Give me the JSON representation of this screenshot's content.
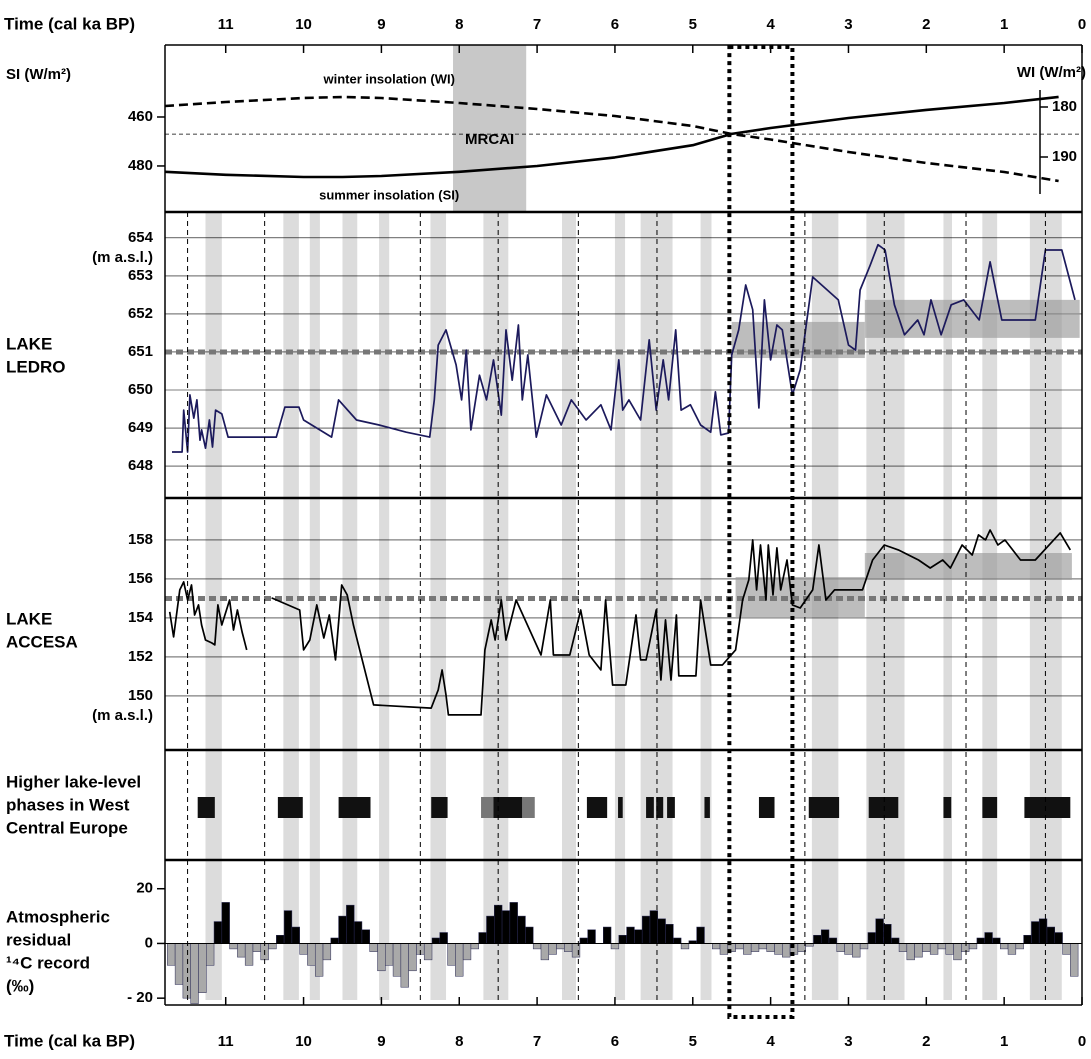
{
  "chart_data": [
    {
      "type": "line",
      "xlabel": "Time (cal ka BP)",
      "xlim": [
        11.78,
        0
      ],
      "xticks": [
        11,
        10,
        9,
        8,
        7,
        6,
        5,
        4,
        3,
        2,
        1,
        0
      ],
      "ylabel": "SI (W/m²)",
      "ylim": [
        498.8,
        430.6
      ],
      "yticks": [
        460,
        480
      ],
      "y2label": "WI (W/m²)",
      "y2lim": [
        201,
        167.6
      ],
      "y2ticks": [
        180,
        190
      ],
      "reference_level": 467,
      "highlight": {
        "label": "MRCAI",
        "range": [
          8.08,
          7.14
        ],
        "color": "#c8c8c8"
      },
      "x": [
        11.78,
        11,
        10,
        9.5,
        9,
        8,
        7,
        6,
        5,
        4.5,
        4,
        3,
        2,
        1,
        0.3
      ],
      "series": [
        {
          "name": "summer insolation (SI)",
          "color": "#000000",
          "dash": false,
          "values": [
            482.4,
            483.6,
            484.5,
            484.5,
            484.1,
            482.4,
            480,
            476.5,
            471.5,
            466.9,
            464.5,
            460.4,
            457.1,
            454.3,
            451.8
          ]
        },
        {
          "name": "winter insolation (WI)",
          "color": "#000000",
          "dash": true,
          "axis": "y2",
          "values": [
            179.8,
            179,
            178.2,
            178,
            178.2,
            179.2,
            180.4,
            181.8,
            183.8,
            185.4,
            186.5,
            189,
            191.2,
            193,
            194.8
          ]
        }
      ]
    },
    {
      "type": "line",
      "label": [
        "LAKE",
        "LEDRO"
      ],
      "yunit": "(m a.s.l.)",
      "xlim": [
        11.78,
        0
      ],
      "ylim": [
        647.16,
        654.68
      ],
      "yticks": [
        648,
        649,
        650,
        651,
        652,
        653,
        654
      ],
      "grid": true,
      "reference_level": 651,
      "reference_color": "#777777",
      "range_color": "#999999",
      "ranges": [
        {
          "x": [
            4.5,
            2.79
          ],
          "y": [
            650.84,
            651.79
          ]
        },
        {
          "x": [
            2.79,
            0.03
          ],
          "y": [
            651.37,
            652.37
          ]
        }
      ],
      "x": [
        11.69,
        11.56,
        11.54,
        11.49,
        11.46,
        11.41,
        11.37,
        11.33,
        11.31,
        11.26,
        11.21,
        11.17,
        11.13,
        11.05,
        10.97,
        10.35,
        10.24,
        10.06,
        10.0,
        9.64,
        9.55,
        9.32,
        9.03,
        8.68,
        8.38,
        8.32,
        8.27,
        8.17,
        8.04,
        7.97,
        7.91,
        7.85,
        7.74,
        7.65,
        7.56,
        7.46,
        7.4,
        7.32,
        7.24,
        7.19,
        7.12,
        7.01,
        6.88,
        6.69,
        6.56,
        6.37,
        6.18,
        6.05,
        5.95,
        5.9,
        5.82,
        5.67,
        5.56,
        5.47,
        5.38,
        5.31,
        5.22,
        5.15,
        5.03,
        4.9,
        4.77,
        4.71,
        4.64,
        4.54,
        4.5,
        4.41,
        4.32,
        4.23,
        4.15,
        4.08,
        4.0,
        3.92,
        3.85,
        3.72,
        3.62,
        3.46,
        3.13,
        3.0,
        2.91,
        2.85,
        2.72,
        2.62,
        2.53,
        2.41,
        2.28,
        2.11,
        2.03,
        1.94,
        1.81,
        1.68,
        1.52,
        1.32,
        1.18,
        1.03,
        0.6,
        0.47,
        0.35,
        0.26,
        0.09
      ],
      "series": [
        {
          "color": "#1c1a5c",
          "values": [
            648.37,
            648.37,
            649.47,
            648.37,
            649.87,
            649.26,
            649.74,
            648.68,
            648.95,
            648.47,
            649.21,
            648.5,
            649.47,
            649.37,
            648.76,
            648.76,
            649.55,
            649.55,
            649.21,
            648.76,
            649.74,
            649.21,
            649.08,
            648.89,
            648.76,
            649.74,
            651.18,
            651.58,
            650.66,
            649.74,
            651.05,
            648.95,
            650.39,
            649.74,
            650.79,
            649.34,
            651.58,
            650.26,
            651.71,
            649.74,
            650.92,
            648.76,
            649.87,
            649.08,
            649.74,
            649.21,
            649.61,
            648.95,
            650.79,
            649.47,
            649.74,
            649.21,
            651.32,
            649.47,
            650.79,
            649.74,
            651.58,
            649.47,
            649.61,
            649.08,
            648.89,
            649.95,
            648.82,
            648.87,
            650.92,
            651.58,
            652.76,
            652.11,
            649.53,
            652.37,
            650.79,
            651.71,
            651.58,
            649.87,
            650.53,
            652.97,
            652.37,
            651.18,
            651.05,
            652.63,
            653.29,
            653.82,
            653.68,
            652.24,
            651.45,
            651.84,
            651.45,
            652.37,
            651.45,
            652.24,
            652.37,
            651.84,
            653.37,
            651.84,
            651.84,
            653.68,
            653.68,
            653.68,
            652.37
          ]
        }
      ]
    },
    {
      "type": "line",
      "label": [
        "LAKE",
        "ACCESA"
      ],
      "yunit": "(m a.s.l.)",
      "xlim": [
        11.78,
        0
      ],
      "ylim": [
        147.23,
        160.15
      ],
      "yticks": [
        150,
        152,
        154,
        156,
        158
      ],
      "grid": true,
      "reference_level": 155,
      "reference_color": "#777777",
      "range_color": "#999999",
      "ranges": [
        {
          "x": [
            4.45,
            2.79
          ],
          "y": [
            154.05,
            156.1
          ]
        },
        {
          "x": [
            2.79,
            0.13
          ],
          "y": [
            155.95,
            157.33
          ]
        }
      ],
      "x": [
        11.72,
        11.67,
        11.59,
        11.54,
        11.49,
        11.44,
        11.4,
        11.35,
        11.31,
        11.26,
        11.18,
        11.14,
        11.1,
        11.05,
        10.95,
        10.9,
        10.85,
        10.79,
        10.73,
        10.57,
        10.41,
        10.05,
        10.0,
        9.92,
        9.83,
        9.74,
        9.67,
        9.59,
        9.51,
        9.44,
        9.36,
        9.1,
        8.36,
        8.27,
        8.22,
        8.17,
        8.14,
        7.72,
        7.67,
        7.59,
        7.54,
        7.46,
        7.4,
        7.27,
        6.95,
        6.83,
        6.79,
        6.58,
        6.44,
        6.33,
        6.18,
        6.12,
        6.03,
        5.86,
        5.73,
        5.67,
        5.6,
        5.47,
        5.41,
        5.35,
        5.28,
        5.21,
        5.18,
        4.96,
        4.9,
        4.77,
        4.62,
        4.45,
        4.36,
        4.28,
        4.23,
        4.18,
        4.13,
        4.06,
        4.03,
        3.97,
        3.92,
        3.87,
        3.79,
        3.72,
        3.62,
        3.46,
        3.38,
        3.29,
        3.18,
        2.82,
        2.69,
        2.54,
        2.36,
        2.1,
        1.95,
        1.79,
        1.69,
        1.54,
        1.41,
        1.33,
        1.24,
        1.18,
        1.08,
        0.99,
        0.79,
        0.6,
        0.28,
        0.15
      ],
      "series": [
        {
          "color": "#000000",
          "values": [
            154.31,
            153.03,
            155.44,
            155.85,
            154.92,
            155.69,
            154.15,
            154.67,
            153.64,
            152.87,
            152.72,
            152.62,
            154.67,
            153.64,
            154.92,
            153.38,
            154.41,
            153.28,
            152.36,
            null,
            155.03,
            154.41,
            152.36,
            152.87,
            154.67,
            152.97,
            154.15,
            151.85,
            155.69,
            155.18,
            153.64,
            149.54,
            149.38,
            150.31,
            151.33,
            150.05,
            149.03,
            149.03,
            152.36,
            153.9,
            152.87,
            154.92,
            152.87,
            154.92,
            152.1,
            154.92,
            152.1,
            152.1,
            154.41,
            152.1,
            151.33,
            154.92,
            150.56,
            150.56,
            154.15,
            151.85,
            151.85,
            154.41,
            150.82,
            153.9,
            150.82,
            154.15,
            151.03,
            151.03,
            154.92,
            151.59,
            151.59,
            152.36,
            154.92,
            155.95,
            158.0,
            155.44,
            157.74,
            154.92,
            157.74,
            155.18,
            157.59,
            155.44,
            156.97,
            154.67,
            154.51,
            155.44,
            157.74,
            154.92,
            155.44,
            155.44,
            156.97,
            157.74,
            157.49,
            156.97,
            156.56,
            156.97,
            156.56,
            157.74,
            157.23,
            158.26,
            158.0,
            158.51,
            157.74,
            158.0,
            156.97,
            156.97,
            158.36,
            157.49
          ]
        }
      ]
    },
    {
      "type": "timeline",
      "label": [
        "Higher lake-level",
        "phases in West",
        "Central Europe"
      ],
      "xlim": [
        11.78,
        0
      ],
      "color": "#111111",
      "uncertain_color": "#777777",
      "phases": [
        [
          11.36,
          11.14
        ],
        [
          10.33,
          10.01
        ],
        [
          9.55,
          9.14
        ],
        [
          8.36,
          8.15
        ],
        [
          7.56,
          7.19
        ],
        [
          6.36,
          6.1
        ],
        [
          5.96,
          5.9
        ],
        [
          5.6,
          5.5
        ],
        [
          5.47,
          5.38
        ],
        [
          5.33,
          5.23
        ],
        [
          4.85,
          4.78
        ],
        [
          4.15,
          3.95
        ],
        [
          3.51,
          3.12
        ],
        [
          2.74,
          2.36
        ],
        [
          1.78,
          1.68
        ],
        [
          1.28,
          1.09
        ],
        [
          0.74,
          0.15
        ]
      ],
      "uncertain_phases": [
        [
          7.72,
          7.56
        ],
        [
          7.19,
          7.03
        ]
      ]
    },
    {
      "type": "bar",
      "label": [
        "Atmospheric",
        "residual",
        "¹⁴C record",
        "(‰)"
      ],
      "xlabel": "Time (cal ka BP)",
      "xlim": [
        11.78,
        0
      ],
      "xticks": [
        11,
        10,
        9,
        8,
        7,
        6,
        5,
        4,
        3,
        2,
        1,
        0
      ],
      "ylim": [
        -22.5,
        30.5
      ],
      "yticks": [
        20,
        0,
        {
          "value": -20,
          "label": "- 20"
        }
      ],
      "positive_color": "#000000",
      "negative_color": "#a9a9a9",
      "x": [
        11.7,
        11.6,
        11.5,
        11.4,
        11.3,
        11.2,
        11.1,
        11.0,
        10.9,
        10.8,
        10.7,
        10.6,
        10.5,
        10.4,
        10.3,
        10.2,
        10.1,
        10.0,
        9.9,
        9.8,
        9.7,
        9.6,
        9.5,
        9.4,
        9.3,
        9.2,
        9.1,
        9.0,
        8.9,
        8.8,
        8.7,
        8.6,
        8.5,
        8.4,
        8.3,
        8.2,
        8.1,
        8.0,
        7.9,
        7.8,
        7.7,
        7.6,
        7.5,
        7.4,
        7.3,
        7.2,
        7.1,
        7.0,
        6.9,
        6.8,
        6.7,
        6.6,
        6.5,
        6.4,
        6.3,
        6.2,
        6.1,
        6.0,
        5.9,
        5.8,
        5.7,
        5.6,
        5.5,
        5.4,
        5.3,
        5.2,
        5.1,
        5.0,
        4.9,
        4.8,
        4.7,
        4.6,
        4.5,
        4.4,
        4.3,
        4.2,
        4.1,
        4.0,
        3.9,
        3.8,
        3.7,
        3.6,
        3.5,
        3.4,
        3.3,
        3.2,
        3.1,
        3.0,
        2.9,
        2.8,
        2.7,
        2.6,
        2.5,
        2.4,
        2.3,
        2.2,
        2.1,
        2.0,
        1.9,
        1.8,
        1.7,
        1.6,
        1.5,
        1.4,
        1.3,
        1.2,
        1.1,
        1.0,
        0.9,
        0.8,
        0.7,
        0.6,
        0.5,
        0.4,
        0.3,
        0.2,
        0.1
      ],
      "values": [
        -8,
        -15,
        -20,
        -22,
        -18,
        -8,
        8,
        15,
        -2,
        -5,
        -8,
        -3,
        -6,
        -2,
        3,
        12,
        6,
        -4,
        -8,
        -12,
        -6,
        2,
        10,
        14,
        8,
        5,
        -3,
        -10,
        -8,
        -12,
        -16,
        -10,
        -4,
        -6,
        2,
        4,
        -8,
        -12,
        -6,
        -2,
        4,
        10,
        14,
        12,
        15,
        10,
        6,
        -2,
        -6,
        -4,
        -2,
        -3,
        -5,
        2,
        5,
        0,
        6,
        -2,
        3,
        6,
        5,
        10,
        12,
        9,
        7,
        2,
        -2,
        1,
        6,
        0,
        -2,
        -4,
        -3,
        -2,
        -4,
        -3,
        -2,
        -3,
        -4,
        -5,
        -4,
        -3,
        -1,
        3,
        5,
        2,
        -3,
        -4,
        -5,
        -2,
        4,
        9,
        7,
        2,
        -3,
        -6,
        -5,
        -3,
        -4,
        -2,
        -4,
        -6,
        -3,
        -2,
        2,
        4,
        2,
        -2,
        -4,
        -2,
        3,
        8,
        9,
        6,
        4,
        -4,
        -12
      ]
    }
  ],
  "shading": {
    "band_color": "#dcdcdc",
    "bands": [
      [
        11.26,
        11.05
      ],
      [
        10.26,
        10.06
      ],
      [
        9.92,
        9.79
      ],
      [
        9.5,
        9.31
      ],
      [
        9.03,
        8.9
      ],
      [
        8.37,
        8.17
      ],
      [
        7.69,
        7.37
      ],
      [
        6.68,
        6.5
      ],
      [
        6.0,
        5.87
      ],
      [
        5.67,
        5.26
      ],
      [
        4.9,
        4.76
      ],
      [
        3.47,
        3.13
      ],
      [
        2.77,
        2.28
      ],
      [
        1.78,
        1.67
      ],
      [
        1.28,
        1.09
      ],
      [
        0.67,
        0.26
      ]
    ],
    "dashed_lines": [
      11.49,
      10.5,
      8.5,
      7.5,
      6.47,
      5.46,
      3.56,
      2.54,
      1.49,
      0.47
    ],
    "box": [
      4.53,
      3.72
    ]
  }
}
